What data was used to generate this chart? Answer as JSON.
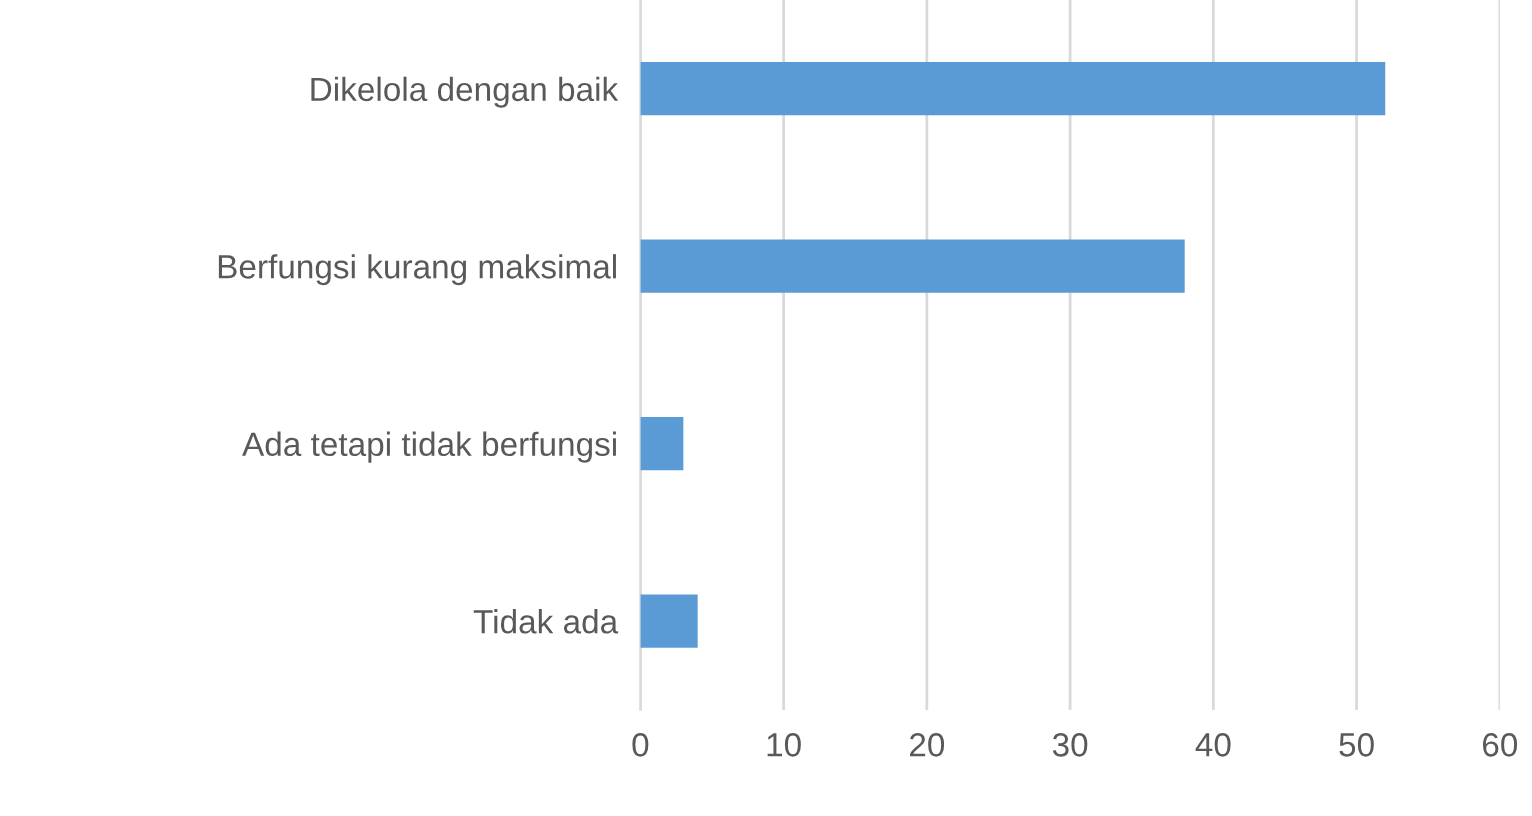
{
  "chart_data": {
    "type": "bar",
    "orientation": "horizontal",
    "categories": [
      "Dikelola dengan baik",
      "Berfungsi kurang maksimal",
      "Ada tetapi tidak berfungsi",
      "Tidak ada"
    ],
    "values": [
      52,
      38,
      3,
      4
    ],
    "color": "#5b9bd5",
    "xlim": [
      0,
      60
    ],
    "xticks": [
      0,
      10,
      20,
      30,
      40,
      50,
      60
    ],
    "grid": "x"
  }
}
